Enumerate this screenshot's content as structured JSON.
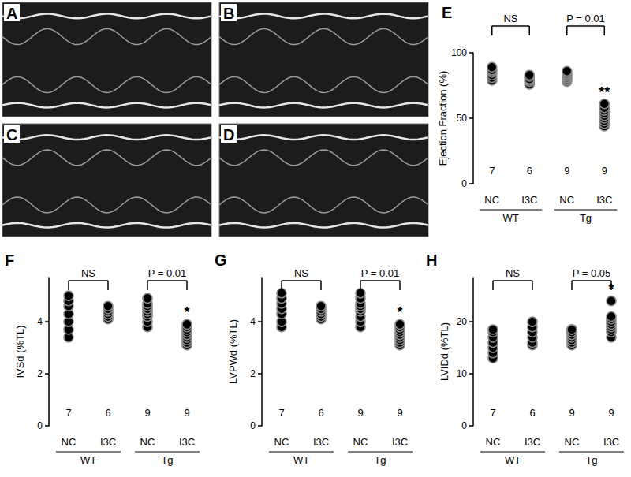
{
  "chart_data": [
    {
      "type": "image",
      "title": "A"
    },
    {
      "type": "image",
      "title": "B"
    },
    {
      "type": "image",
      "title": "C"
    },
    {
      "type": "image",
      "title": "D"
    },
    {
      "type": "scatter",
      "title": "E",
      "y_label": "Ejection Fraction (%)",
      "ylim": [
        0,
        100
      ],
      "yticks": [
        0,
        50,
        100
      ],
      "grid": false,
      "color": "#000000",
      "marker": "circle",
      "groups": [
        {
          "name": "WT",
          "comparison": "NS",
          "series": [
            {
              "category": "NC",
              "n": 7,
              "values": [
                79,
                81,
                83,
                85,
                86,
                87,
                89
              ]
            },
            {
              "category": "I3C",
              "n": 6,
              "values": [
                76,
                78,
                79,
                80,
                82,
                83
              ]
            }
          ]
        },
        {
          "name": "Tg",
          "comparison": "P = 0.01",
          "series": [
            {
              "category": "NC",
              "n": 9,
              "values": [
                78,
                79,
                80,
                81,
                82,
                83,
                84,
                85,
                86
              ]
            },
            {
              "category": "I3C",
              "n": 9,
              "values": [
                44,
                46,
                48,
                50,
                52,
                54,
                56,
                58,
                61
              ],
              "significance": "**"
            }
          ]
        }
      ]
    },
    {
      "type": "scatter",
      "title": "F",
      "y_label": "IVSd (%TL)",
      "ylim": [
        0,
        5.7
      ],
      "yticks": [
        0,
        2,
        4
      ],
      "grid": false,
      "color": "#000000",
      "marker": "circle",
      "groups": [
        {
          "name": "WT",
          "comparison": "NS",
          "series": [
            {
              "category": "NC",
              "n": 7,
              "values": [
                3.4,
                3.7,
                4.0,
                4.3,
                4.6,
                4.8,
                5.0
              ]
            },
            {
              "category": "I3C",
              "n": 6,
              "values": [
                4.1,
                4.2,
                4.3,
                4.4,
                4.5,
                4.6
              ]
            }
          ]
        },
        {
          "name": "Tg",
          "comparison": "P = 0.01",
          "series": [
            {
              "category": "NC",
              "n": 9,
              "values": [
                3.8,
                4.0,
                4.2,
                4.3,
                4.4,
                4.5,
                4.6,
                4.7,
                4.9
              ]
            },
            {
              "category": "I3C",
              "n": 9,
              "values": [
                3.1,
                3.2,
                3.3,
                3.4,
                3.5,
                3.6,
                3.7,
                3.8,
                3.9
              ],
              "significance": "*"
            }
          ]
        }
      ]
    },
    {
      "type": "scatter",
      "title": "G",
      "y_label": "LVPWd (%TL)",
      "ylim": [
        0,
        5.7
      ],
      "yticks": [
        0,
        2,
        4
      ],
      "grid": false,
      "color": "#000000",
      "marker": "circle",
      "groups": [
        {
          "name": "WT",
          "comparison": "NS",
          "series": [
            {
              "category": "NC",
              "n": 7,
              "values": [
                3.8,
                4.0,
                4.3,
                4.5,
                4.7,
                4.9,
                5.1
              ]
            },
            {
              "category": "I3C",
              "n": 6,
              "values": [
                4.1,
                4.2,
                4.3,
                4.4,
                4.5,
                4.6
              ]
            }
          ]
        },
        {
          "name": "Tg",
          "comparison": "P = 0.01",
          "series": [
            {
              "category": "NC",
              "n": 9,
              "values": [
                3.8,
                4.0,
                4.2,
                4.4,
                4.5,
                4.6,
                4.7,
                4.9,
                5.1
              ]
            },
            {
              "category": "I3C",
              "n": 9,
              "values": [
                3.1,
                3.2,
                3.3,
                3.4,
                3.5,
                3.6,
                3.7,
                3.8,
                3.9
              ],
              "significance": "*"
            }
          ]
        }
      ]
    },
    {
      "type": "scatter",
      "title": "H",
      "y_label": "LVIDd (%TL)",
      "ylim": [
        0,
        28.5
      ],
      "yticks": [
        0,
        10,
        20
      ],
      "grid": false,
      "color": "#000000",
      "marker": "circle",
      "groups": [
        {
          "name": "WT",
          "comparison": "NS",
          "series": [
            {
              "category": "NC",
              "n": 7,
              "values": [
                13,
                14,
                15,
                16,
                17,
                18,
                18.5
              ]
            },
            {
              "category": "I3C",
              "n": 6,
              "values": [
                15.5,
                16,
                17,
                18,
                19,
                20
              ]
            }
          ]
        },
        {
          "name": "Tg",
          "comparison": "P = 0.05",
          "series": [
            {
              "category": "NC",
              "n": 9,
              "values": [
                15.5,
                16,
                16.5,
                17,
                17.5,
                18,
                18,
                18.5,
                18.5
              ]
            },
            {
              "category": "I3C",
              "n": 9,
              "values": [
                17,
                18,
                18.5,
                19,
                19.5,
                20,
                20.5,
                21,
                24
              ],
              "significance": "*"
            }
          ]
        }
      ]
    }
  ]
}
